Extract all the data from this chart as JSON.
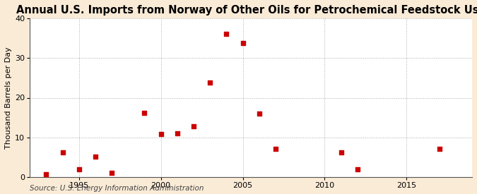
{
  "years": [
    1993,
    1994,
    1995,
    1996,
    1997,
    1999,
    2000,
    2001,
    2002,
    2003,
    2004,
    2005,
    2006,
    2007,
    2011,
    2012,
    2017
  ],
  "values": [
    0.8,
    6.2,
    2.0,
    5.2,
    1.0,
    16.2,
    10.8,
    11.0,
    12.8,
    23.8,
    36.0,
    33.8,
    16.0,
    7.1,
    6.2,
    2.0,
    7.1
  ],
  "title": "Annual U.S. Imports from Norway of Other Oils for Petrochemical Feedstock Use",
  "ylabel": "Thousand Barrels per Day",
  "source": "Source: U.S. Energy Information Administration",
  "xlim": [
    1992,
    2019
  ],
  "ylim": [
    0,
    40
  ],
  "yticks": [
    0,
    10,
    20,
    30,
    40
  ],
  "xticks": [
    1995,
    2000,
    2005,
    2010,
    2015
  ],
  "marker_color": "#cc0000",
  "marker_size": 18,
  "fig_bg_color": "#faebd7",
  "plot_bg_color": "#ffffff",
  "grid_color": "#aaaaaa",
  "title_fontsize": 10.5,
  "label_fontsize": 8,
  "tick_fontsize": 8,
  "source_fontsize": 7.5
}
